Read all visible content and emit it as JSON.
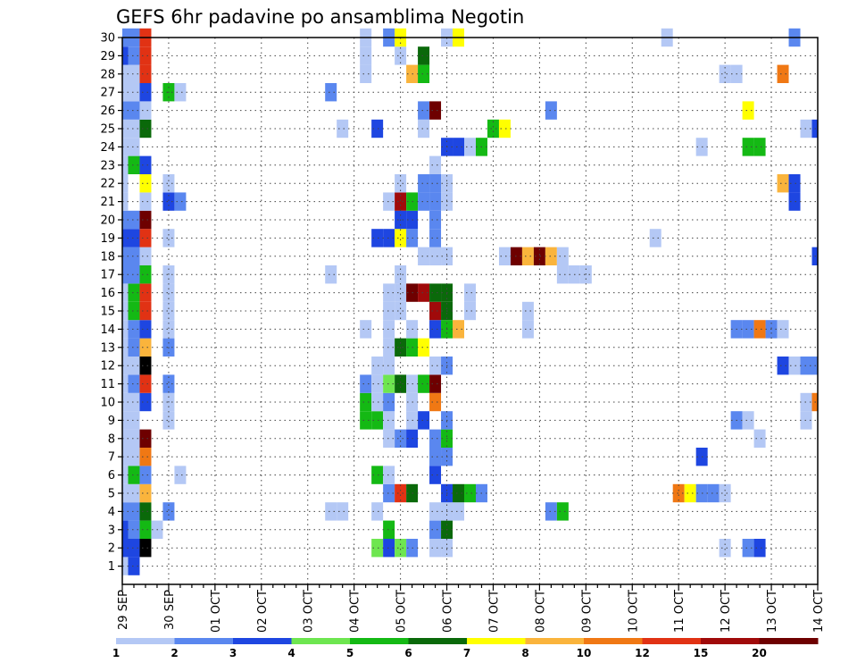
{
  "chart_data": {
    "type": "heatmap",
    "title": "GEFS 6hr padavine po ansamblima Negotin",
    "xlabel": "",
    "ylabel": "",
    "x_tick_labels": [
      "29 SEP",
      "30 SEP",
      "01 OCT",
      "02 OCT",
      "03 OCT",
      "04 OCT",
      "05 OCT",
      "06 OCT",
      "07 OCT",
      "08 OCT",
      "09 OCT",
      "10 OCT",
      "11 OCT",
      "12 OCT",
      "13 OCT",
      "14 OCT"
    ],
    "x_range": [
      0,
      60
    ],
    "x_unit": "6-hour steps from 29 SEP 00Z",
    "y_tick_labels": [
      "1",
      "2",
      "3",
      "4",
      "5",
      "6",
      "7",
      "8",
      "9",
      "10",
      "11",
      "12",
      "13",
      "14",
      "15",
      "16",
      "17",
      "18",
      "19",
      "20",
      "21",
      "22",
      "23",
      "24",
      "25",
      "26",
      "27",
      "28",
      "29",
      "30"
    ],
    "y_range": [
      0,
      30
    ],
    "grid": true,
    "colorbar": {
      "labels": [
        "1",
        "2",
        "3",
        "4",
        "5",
        "6",
        "7",
        "8",
        "10",
        "12",
        "15",
        "20"
      ],
      "colors": [
        "#b4c8f5",
        "#5a87ef",
        "#1e46e1",
        "#6ee650",
        "#14b914",
        "#0a690a",
        "#ffff00",
        "#fab43c",
        "#f07814",
        "#e13214",
        "#a00a0a",
        "#6e0000"
      ]
    },
    "cells": [
      [
        0,
        1,
        1
      ],
      [
        0,
        2,
        3
      ],
      [
        0,
        3,
        3
      ],
      [
        0,
        4,
        2
      ],
      [
        0,
        5,
        1
      ],
      [
        0,
        6,
        1
      ],
      [
        0,
        7,
        1
      ],
      [
        0,
        8,
        1
      ],
      [
        0,
        9,
        1
      ],
      [
        0,
        10,
        1
      ],
      [
        0,
        11,
        1
      ],
      [
        0,
        12,
        1
      ],
      [
        0,
        13,
        1
      ],
      [
        0,
        14,
        1
      ],
      [
        0,
        15,
        1
      ],
      [
        0,
        16,
        1
      ],
      [
        0,
        17,
        2
      ],
      [
        0,
        18,
        2
      ],
      [
        0,
        19,
        3
      ],
      [
        0,
        20,
        2
      ],
      [
        0,
        21,
        1
      ],
      [
        0,
        22,
        1
      ],
      [
        0,
        23,
        1
      ],
      [
        0,
        24,
        1
      ],
      [
        0,
        25,
        1
      ],
      [
        0,
        26,
        2
      ],
      [
        0,
        27,
        1
      ],
      [
        0,
        28,
        1
      ],
      [
        0,
        29,
        3
      ],
      [
        0,
        30,
        2
      ],
      [
        1,
        1,
        3
      ],
      [
        1,
        2,
        3
      ],
      [
        1,
        3,
        2
      ],
      [
        1,
        4,
        2
      ],
      [
        1,
        5,
        1
      ],
      [
        1,
        6,
        5
      ],
      [
        1,
        7,
        1
      ],
      [
        1,
        8,
        1
      ],
      [
        1,
        9,
        1
      ],
      [
        1,
        10,
        1
      ],
      [
        1,
        11,
        2
      ],
      [
        1,
        12,
        1
      ],
      [
        1,
        13,
        2
      ],
      [
        1,
        14,
        2
      ],
      [
        1,
        15,
        5
      ],
      [
        1,
        16,
        5
      ],
      [
        1,
        17,
        2
      ],
      [
        1,
        18,
        2
      ],
      [
        1,
        19,
        3
      ],
      [
        1,
        20,
        2
      ],
      [
        1,
        23,
        5
      ],
      [
        1,
        24,
        1
      ],
      [
        1,
        25,
        1
      ],
      [
        1,
        26,
        2
      ],
      [
        1,
        27,
        1
      ],
      [
        1,
        28,
        1
      ],
      [
        1,
        29,
        2
      ],
      [
        1,
        30,
        2
      ],
      [
        2,
        2,
        13
      ],
      [
        2,
        3,
        5
      ],
      [
        2,
        4,
        6
      ],
      [
        2,
        5,
        8
      ],
      [
        2,
        6,
        2
      ],
      [
        2,
        7,
        9
      ],
      [
        2,
        8,
        12
      ],
      [
        2,
        10,
        3
      ],
      [
        2,
        11,
        10
      ],
      [
        2,
        12,
        13
      ],
      [
        2,
        13,
        8
      ],
      [
        2,
        14,
        3
      ],
      [
        2,
        15,
        10
      ],
      [
        2,
        16,
        10
      ],
      [
        2,
        17,
        5
      ],
      [
        2,
        18,
        1
      ],
      [
        2,
        19,
        10
      ],
      [
        2,
        20,
        12
      ],
      [
        2,
        21,
        1
      ],
      [
        2,
        22,
        7
      ],
      [
        2,
        23,
        3
      ],
      [
        2,
        25,
        6
      ],
      [
        2,
        26,
        1
      ],
      [
        2,
        27,
        3
      ],
      [
        2,
        28,
        10
      ],
      [
        2,
        29,
        10
      ],
      [
        2,
        30,
        10
      ],
      [
        3,
        3,
        1
      ],
      [
        4,
        4,
        2
      ],
      [
        4,
        9,
        1
      ],
      [
        4,
        10,
        1
      ],
      [
        4,
        11,
        2
      ],
      [
        4,
        13,
        2
      ],
      [
        4,
        14,
        1
      ],
      [
        4,
        15,
        1
      ],
      [
        4,
        16,
        1
      ],
      [
        4,
        17,
        1
      ],
      [
        4,
        19,
        1
      ],
      [
        4,
        21,
        3
      ],
      [
        4,
        22,
        1
      ],
      [
        4,
        27,
        5
      ],
      [
        5,
        6,
        1
      ],
      [
        5,
        21,
        2
      ],
      [
        5,
        27,
        1
      ],
      [
        18,
        4,
        1
      ],
      [
        18,
        17,
        1
      ],
      [
        18,
        27,
        2
      ],
      [
        19,
        4,
        1
      ],
      [
        19,
        25,
        1
      ],
      [
        21,
        9,
        5
      ],
      [
        21,
        10,
        5
      ],
      [
        21,
        11,
        2
      ],
      [
        21,
        14,
        1
      ],
      [
        21,
        28,
        1
      ],
      [
        21,
        29,
        1
      ],
      [
        21,
        30,
        1
      ],
      [
        22,
        2,
        4
      ],
      [
        22,
        4,
        1
      ],
      [
        22,
        6,
        5
      ],
      [
        22,
        9,
        5
      ],
      [
        22,
        10,
        1
      ],
      [
        22,
        11,
        1
      ],
      [
        22,
        12,
        1
      ],
      [
        22,
        19,
        3
      ],
      [
        22,
        25,
        3
      ],
      [
        23,
        2,
        3
      ],
      [
        23,
        3,
        5
      ],
      [
        23,
        5,
        2
      ],
      [
        23,
        6,
        1
      ],
      [
        23,
        8,
        1
      ],
      [
        23,
        9,
        1
      ],
      [
        23,
        10,
        2
      ],
      [
        23,
        11,
        4
      ],
      [
        23,
        12,
        1
      ],
      [
        23,
        13,
        1
      ],
      [
        23,
        14,
        1
      ],
      [
        23,
        15,
        1
      ],
      [
        23,
        16,
        1
      ],
      [
        23,
        19,
        3
      ],
      [
        23,
        21,
        1
      ],
      [
        23,
        30,
        2
      ],
      [
        24,
        2,
        4
      ],
      [
        24,
        5,
        10
      ],
      [
        24,
        8,
        2
      ],
      [
        24,
        11,
        6
      ],
      [
        24,
        13,
        6
      ],
      [
        24,
        15,
        1
      ],
      [
        24,
        16,
        1
      ],
      [
        24,
        17,
        1
      ],
      [
        24,
        19,
        7
      ],
      [
        24,
        20,
        3
      ],
      [
        24,
        21,
        11
      ],
      [
        24,
        22,
        1
      ],
      [
        24,
        29,
        1
      ],
      [
        24,
        30,
        7
      ],
      [
        25,
        2,
        2
      ],
      [
        25,
        5,
        6
      ],
      [
        25,
        8,
        3
      ],
      [
        25,
        9,
        1
      ],
      [
        25,
        10,
        1
      ],
      [
        25,
        11,
        1
      ],
      [
        25,
        13,
        5
      ],
      [
        25,
        14,
        1
      ],
      [
        25,
        16,
        12
      ],
      [
        25,
        19,
        2
      ],
      [
        25,
        20,
        3
      ],
      [
        25,
        21,
        5
      ],
      [
        25,
        28,
        8
      ],
      [
        26,
        9,
        3
      ],
      [
        26,
        11,
        5
      ],
      [
        26,
        13,
        7
      ],
      [
        26,
        16,
        11
      ],
      [
        26,
        18,
        1
      ],
      [
        26,
        21,
        2
      ],
      [
        26,
        22,
        2
      ],
      [
        26,
        25,
        1
      ],
      [
        26,
        26,
        2
      ],
      [
        26,
        28,
        5
      ],
      [
        26,
        29,
        6
      ],
      [
        27,
        2,
        1
      ],
      [
        27,
        3,
        2
      ],
      [
        27,
        4,
        1
      ],
      [
        27,
        6,
        3
      ],
      [
        27,
        7,
        2
      ],
      [
        27,
        8,
        2
      ],
      [
        27,
        10,
        9
      ],
      [
        27,
        11,
        12
      ],
      [
        27,
        12,
        1
      ],
      [
        27,
        14,
        3
      ],
      [
        27,
        15,
        11
      ],
      [
        27,
        16,
        6
      ],
      [
        27,
        18,
        1
      ],
      [
        27,
        19,
        2
      ],
      [
        27,
        20,
        2
      ],
      [
        27,
        21,
        2
      ],
      [
        27,
        22,
        2
      ],
      [
        27,
        23,
        1
      ],
      [
        27,
        26,
        12
      ],
      [
        28,
        2,
        1
      ],
      [
        28,
        3,
        6
      ],
      [
        28,
        4,
        1
      ],
      [
        28,
        5,
        3
      ],
      [
        28,
        7,
        2
      ],
      [
        28,
        8,
        5
      ],
      [
        28,
        9,
        2
      ],
      [
        28,
        12,
        2
      ],
      [
        28,
        14,
        5
      ],
      [
        28,
        15,
        6
      ],
      [
        28,
        16,
        6
      ],
      [
        28,
        18,
        1
      ],
      [
        28,
        21,
        1
      ],
      [
        28,
        22,
        1
      ],
      [
        28,
        24,
        3
      ],
      [
        28,
        30,
        1
      ],
      [
        29,
        4,
        1
      ],
      [
        29,
        5,
        6
      ],
      [
        29,
        14,
        8
      ],
      [
        29,
        24,
        3
      ],
      [
        29,
        30,
        7
      ],
      [
        30,
        5,
        5
      ],
      [
        30,
        15,
        1
      ],
      [
        30,
        16,
        1
      ],
      [
        30,
        24,
        1
      ],
      [
        31,
        5,
        2
      ],
      [
        31,
        24,
        5
      ],
      [
        32,
        25,
        5
      ],
      [
        33,
        18,
        1
      ],
      [
        33,
        25,
        7
      ],
      [
        34,
        18,
        12
      ],
      [
        35,
        18,
        8
      ],
      [
        35,
        15,
        1
      ],
      [
        35,
        14,
        1
      ],
      [
        36,
        18,
        12
      ],
      [
        37,
        4,
        2
      ],
      [
        37,
        18,
        8
      ],
      [
        37,
        26,
        2
      ],
      [
        38,
        4,
        5
      ],
      [
        38,
        17,
        1
      ],
      [
        38,
        18,
        1
      ],
      [
        39,
        17,
        1
      ],
      [
        40,
        17,
        1
      ],
      [
        46,
        19,
        1
      ],
      [
        47,
        30,
        1
      ],
      [
        48,
        5,
        9
      ],
      [
        49,
        5,
        7
      ],
      [
        50,
        5,
        2
      ],
      [
        50,
        7,
        3
      ],
      [
        50,
        24,
        1
      ],
      [
        51,
        5,
        2
      ],
      [
        52,
        5,
        1
      ],
      [
        52,
        2,
        1
      ],
      [
        52,
        28,
        1
      ],
      [
        53,
        28,
        1
      ],
      [
        53,
        14,
        2
      ],
      [
        53,
        9,
        2
      ],
      [
        54,
        2,
        2
      ],
      [
        54,
        9,
        1
      ],
      [
        54,
        14,
        2
      ],
      [
        54,
        24,
        5
      ],
      [
        54,
        26,
        7
      ],
      [
        55,
        2,
        3
      ],
      [
        55,
        8,
        1
      ],
      [
        55,
        14,
        9
      ],
      [
        55,
        24,
        5
      ],
      [
        56,
        14,
        2
      ],
      [
        57,
        14,
        1
      ],
      [
        57,
        28,
        9
      ],
      [
        57,
        22,
        8
      ],
      [
        57,
        12,
        3
      ],
      [
        58,
        12,
        1
      ],
      [
        58,
        21,
        3
      ],
      [
        58,
        22,
        3
      ],
      [
        58,
        30,
        2
      ],
      [
        59,
        9,
        1
      ],
      [
        59,
        10,
        1
      ],
      [
        59,
        25,
        1
      ],
      [
        59,
        12,
        2
      ],
      [
        60,
        10,
        9
      ],
      [
        60,
        12,
        2
      ],
      [
        60,
        18,
        3
      ],
      [
        60,
        25,
        3
      ]
    ]
  }
}
